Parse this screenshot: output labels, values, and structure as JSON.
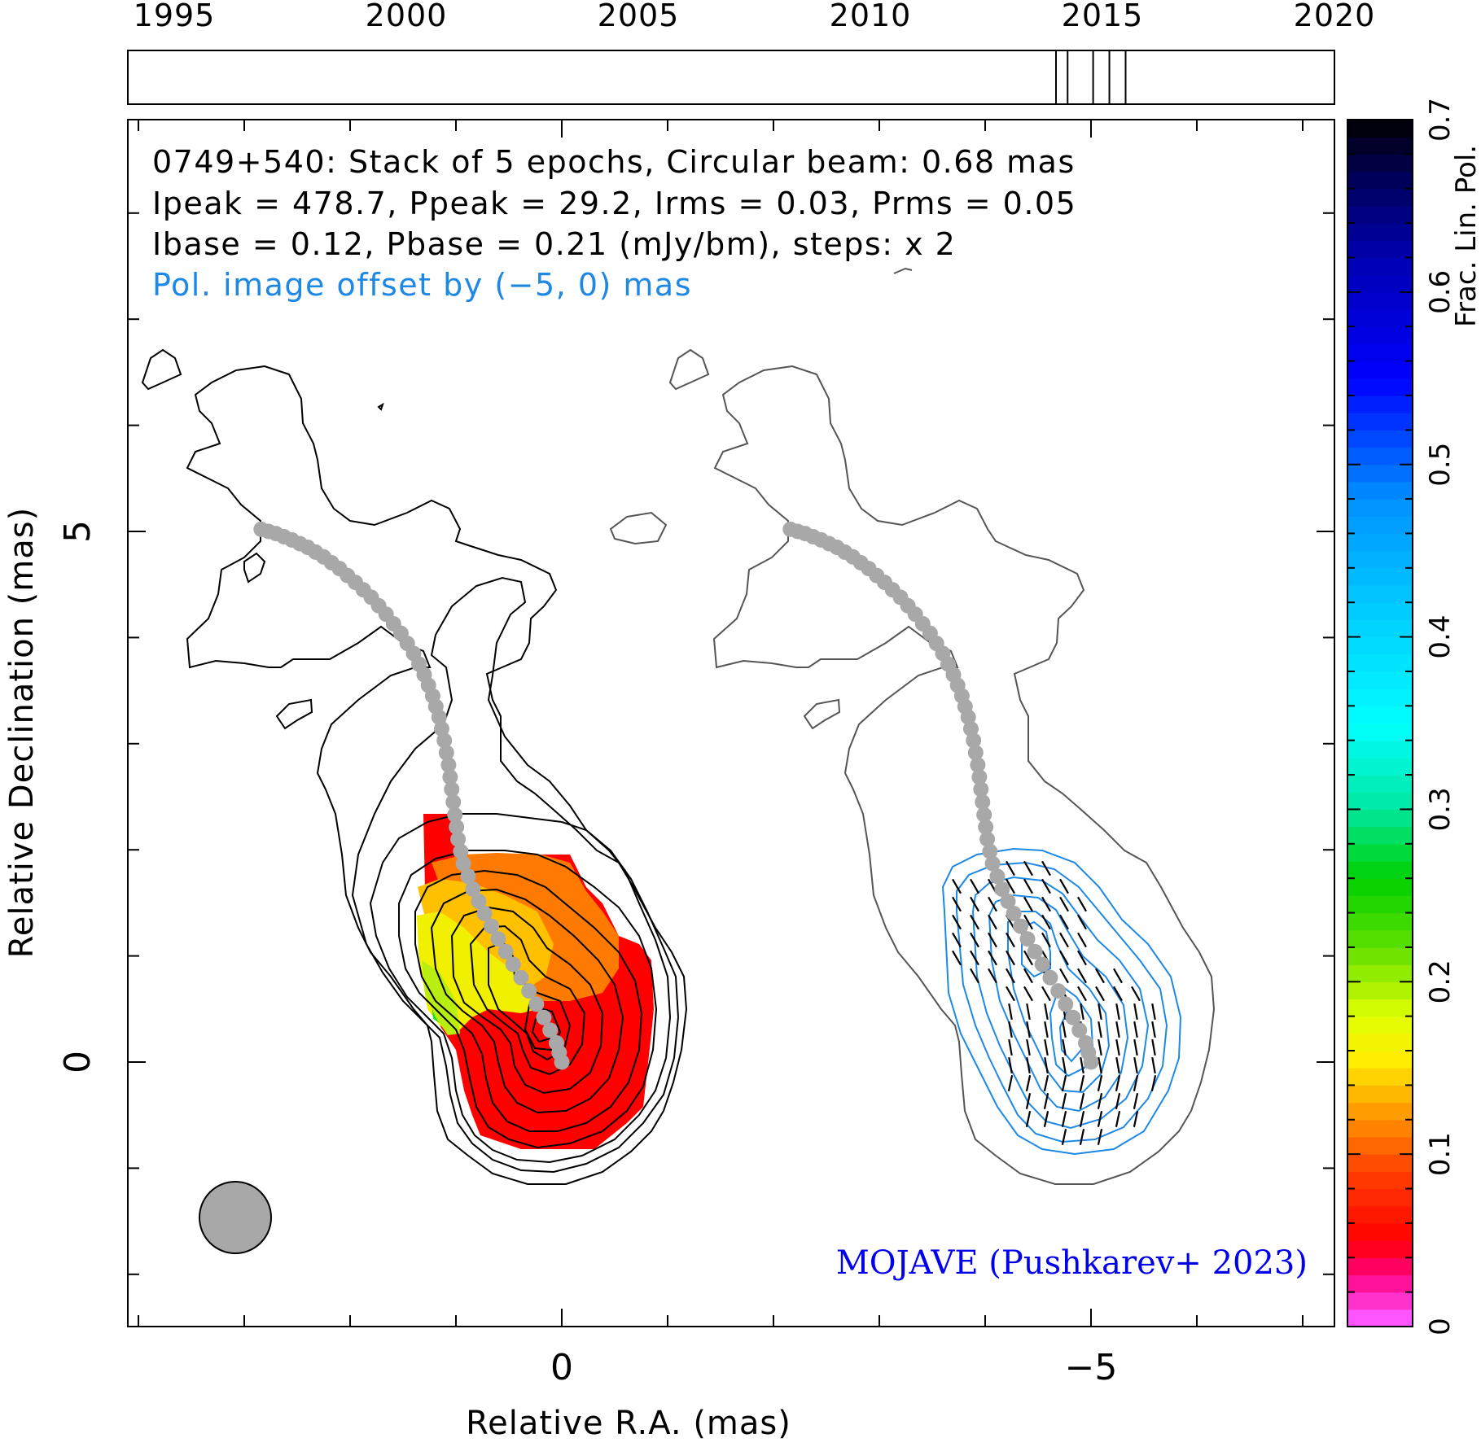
{
  "chart_data": {
    "type": "contour",
    "title": {
      "line1": "0749+540: Stack of 5 epochs, Circular beam: 0.68 mas",
      "line2": "Ipeak = 478.7, Ppeak = 29.2, Irms = 0.03, Prms = 0.05",
      "line3": "Ibase = 0.12, Pbase = 0.21 (mJy/bm), steps: x 2",
      "line4": "Pol. image offset by (−5, 0) mas"
    },
    "credit": "MOJAVE (Pushkarev+ 2023)",
    "xlabel": "Relative R.A. (mas)",
    "ylabel": "Relative Declination (mas)",
    "x_ticks": [
      "0",
      "−5"
    ],
    "y_ticks": [
      "0",
      "5"
    ],
    "xlim": [
      4.1,
      -7.3
    ],
    "ylim": [
      -2.5,
      8.9
    ],
    "epoch_axis": {
      "ticks": [
        "1995",
        "2000",
        "2005",
        "2010",
        "2015",
        "2020"
      ],
      "range": [
        1994,
        2020
      ],
      "epochs": [
        2014.0,
        2014.25,
        2014.8,
        2015.15,
        2015.5
      ]
    },
    "colorbar": {
      "label": "Frac. Lin. Pol.",
      "ticks": [
        "0",
        "0.1",
        "0.2",
        "0.3",
        "0.4",
        "0.5",
        "0.6",
        "0.7"
      ],
      "range": [
        0,
        0.7
      ]
    },
    "beam_fwhm_mas": 0.68,
    "pol_offset_mas": [
      -5,
      0
    ],
    "colors": {
      "total_intensity": "#000000",
      "pol_contours": "#1e88e5",
      "ridge": "#a8a8a8",
      "credit": "#0000ee",
      "pol_label": "#1e88e5",
      "outer_pol_contour": "#555555"
    }
  }
}
